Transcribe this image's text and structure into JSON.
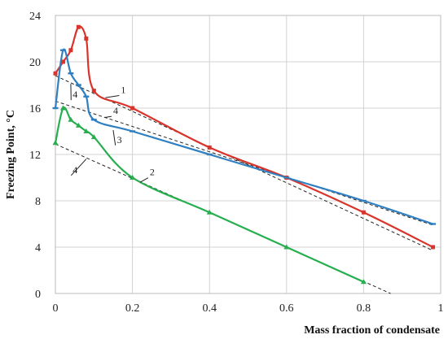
{
  "chart_data": {
    "type": "line",
    "xlabel": "Mass fraction of condensate",
    "ylabel": "Freezing Point, °C",
    "xlim": [
      0,
      1
    ],
    "ylim": [
      0,
      24
    ],
    "x_ticks": [
      "0",
      "0.2",
      "0.4",
      "0.6",
      "0.8",
      "1"
    ],
    "y_ticks": [
      "0",
      "4",
      "8",
      "12",
      "16",
      "20",
      "24"
    ],
    "grid": true,
    "legend": "none",
    "series": [
      {
        "key": "red",
        "color": "#d9342b",
        "marker": "square",
        "points": [
          [
            0,
            19
          ],
          [
            0.02,
            20
          ],
          [
            0.04,
            21
          ],
          [
            0.06,
            23
          ],
          [
            0.08,
            22
          ],
          [
            0.1,
            17.5
          ],
          [
            0.2,
            16
          ],
          [
            0.4,
            12.6
          ],
          [
            0.6,
            10
          ],
          [
            0.8,
            7
          ],
          [
            0.98,
            4
          ]
        ]
      },
      {
        "key": "blue",
        "color": "#2f7fc1",
        "marker": "dash",
        "points": [
          [
            0,
            16
          ],
          [
            0.02,
            21
          ],
          [
            0.04,
            19
          ],
          [
            0.06,
            18
          ],
          [
            0.08,
            17
          ],
          [
            0.1,
            15
          ],
          [
            0.2,
            14
          ],
          [
            0.4,
            12
          ],
          [
            0.6,
            10
          ],
          [
            0.8,
            8
          ],
          [
            0.98,
            6
          ]
        ]
      },
      {
        "key": "green",
        "color": "#27ae4f",
        "marker": "triangle",
        "points": [
          [
            0,
            13
          ],
          [
            0.02,
            16
          ],
          [
            0.04,
            15
          ],
          [
            0.06,
            14.5
          ],
          [
            0.08,
            14
          ],
          [
            0.1,
            13.5
          ],
          [
            0.2,
            10
          ],
          [
            0.4,
            7
          ],
          [
            0.6,
            4
          ],
          [
            0.8,
            1
          ]
        ]
      }
    ],
    "reference_lines": [
      {
        "from": [
          0,
          18.8
        ],
        "to": [
          0.98,
          3.7
        ]
      },
      {
        "from": [
          0,
          16.6
        ],
        "to": [
          0.98,
          5.9
        ]
      },
      {
        "from": [
          0,
          12.9
        ],
        "to": [
          0.87,
          0
        ]
      }
    ],
    "annotations": [
      {
        "text": "1",
        "x": 0.17,
        "y": 17.3,
        "leader_to": [
          0.13,
          16.9
        ]
      },
      {
        "text": "2",
        "x": 0.245,
        "y": 10.2,
        "leader_to": [
          0.22,
          9.6
        ]
      },
      {
        "text": "3",
        "x": 0.16,
        "y": 13,
        "leader_to": [
          0.15,
          14.1
        ]
      },
      {
        "text": "4",
        "x": 0.045,
        "y": 16.9,
        "leader_to": [
          0.04,
          18.1
        ]
      },
      {
        "text": "4",
        "x": 0.15,
        "y": 15.5,
        "leader_to": [
          0.13,
          15.2
        ]
      },
      {
        "text": "4",
        "x": 0.045,
        "y": 10.4,
        "leader_to": [
          0.08,
          11.6
        ]
      }
    ]
  }
}
